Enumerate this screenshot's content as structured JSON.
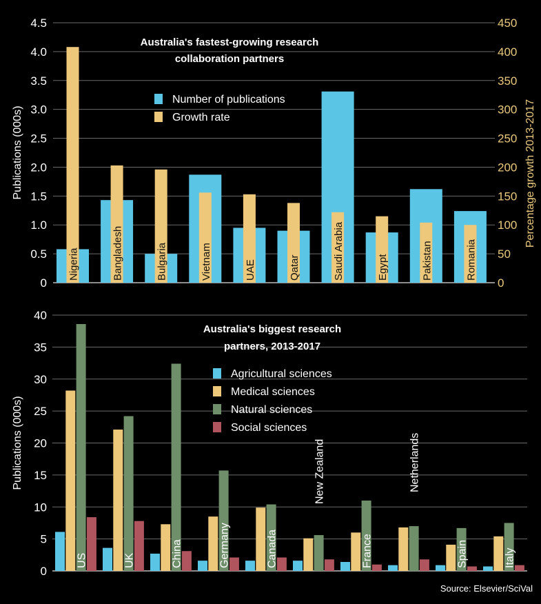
{
  "colors": {
    "background": "#000000",
    "blue": "#5bc5e6",
    "gold": "#edc87a",
    "green": "#6f8f6a",
    "red": "#b0555e",
    "grid": "#6b6b6b"
  },
  "chart_data": [
    {
      "type": "bar",
      "title": [
        "Australia's fastest-growing research",
        "collaboration partners"
      ],
      "categories": [
        "Nigeria",
        "Bangladesh",
        "Bulgaria",
        "Vietnam",
        "UAE",
        "Qatar",
        "Saudi Arabia",
        "Egypt",
        "Pakistan",
        "Romania"
      ],
      "series": [
        {
          "name": "Number of publications",
          "axis": "left",
          "color": "#5bc5e6",
          "values": [
            0.58,
            1.43,
            0.5,
            1.87,
            0.95,
            0.9,
            3.31,
            0.87,
            1.62,
            1.24
          ]
        },
        {
          "name": "Growth rate",
          "axis": "right",
          "color": "#edc87a",
          "values": [
            408,
            203,
            196,
            156,
            153,
            138,
            122,
            115,
            104,
            100
          ]
        }
      ],
      "ylabel": "Publications (000s)",
      "ylabel_right": "Percentage growth 2013-2017",
      "ylim": [
        0,
        4.5
      ],
      "ylim_right": [
        0,
        450
      ],
      "yticks": [
        "0",
        "0.5",
        "1.0",
        "1.5",
        "2.0",
        "2.5",
        "3.0",
        "3.5",
        "4.0",
        "4.5"
      ],
      "yticks_right": [
        "0",
        "50",
        "100",
        "150",
        "200",
        "250",
        "300",
        "350",
        "400",
        "450"
      ],
      "grid": true,
      "legend": "top-center"
    },
    {
      "type": "bar",
      "title": [
        "Australia's biggest research",
        "partners, 2013-2017"
      ],
      "categories": [
        "US",
        "UK",
        "China",
        "Germany",
        "Canada",
        "New Zealand",
        "France",
        "Netherlands",
        "Spain",
        "Italy"
      ],
      "series": [
        {
          "name": "Agricultural sciences",
          "color": "#5bc5e6",
          "values": [
            6.1,
            3.6,
            2.7,
            1.6,
            1.6,
            1.6,
            1.4,
            0.9,
            0.9,
            0.7
          ]
        },
        {
          "name": "Medical sciences",
          "color": "#edc87a",
          "values": [
            28.2,
            22.1,
            7.3,
            8.5,
            9.9,
            5.1,
            6.0,
            6.8,
            4.1,
            5.4
          ]
        },
        {
          "name": "Natural sciences",
          "color": "#6f8f6a",
          "values": [
            38.6,
            24.2,
            32.4,
            15.7,
            10.4,
            5.6,
            11.0,
            7.0,
            6.7,
            7.5
          ]
        },
        {
          "name": "Social sciences",
          "color": "#b0555e",
          "values": [
            8.4,
            7.8,
            3.1,
            2.1,
            2.1,
            1.8,
            1.0,
            1.8,
            0.7,
            0.9
          ]
        }
      ],
      "ylabel": "Publications (000s)",
      "ylim": [
        0,
        40
      ],
      "yticks": [
        "0",
        "5",
        "10",
        "15",
        "20",
        "25",
        "30",
        "35",
        "40"
      ],
      "grid": true,
      "legend": "center"
    }
  ],
  "source": "Source: Elsevier/SciVal"
}
